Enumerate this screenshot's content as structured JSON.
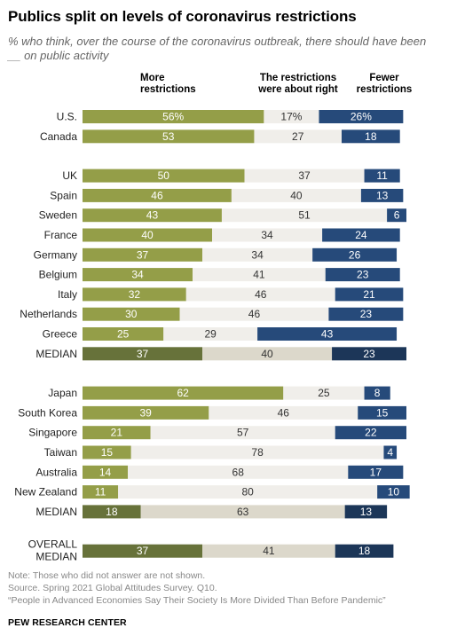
{
  "title": "Publics split on levels of coronavirus restrictions",
  "subtitle": "% who think, over the course of the coronavirus outbreak, there should have been __ on public activity",
  "chart_data": {
    "type": "bar",
    "stacked": true,
    "xlim": [
      0,
      100
    ],
    "series": [
      {
        "name": "More restrictions",
        "key": "more"
      },
      {
        "name": "The restrictions were about right",
        "key": "right"
      },
      {
        "name": "Fewer restrictions",
        "key": "fewer"
      }
    ],
    "colors": {
      "more": "#949e48",
      "right": "#f0eeea",
      "fewer": "#264a7a",
      "more_median": "#67723a",
      "right_median": "#dcd8cb",
      "fewer_median": "#1c3658"
    },
    "rows": [
      {
        "label": "U.S.",
        "more": 56,
        "right": 17,
        "fewer": 26,
        "labels": [
          "56%",
          "17%",
          "26%"
        ],
        "group": 0
      },
      {
        "label": "Canada",
        "more": 53,
        "right": 27,
        "fewer": 18,
        "labels": [
          "53",
          "27",
          "18"
        ],
        "group": 0
      },
      {
        "label": "UK",
        "more": 50,
        "right": 37,
        "fewer": 11,
        "labels": [
          "50",
          "37",
          "11"
        ],
        "group": 1
      },
      {
        "label": "Spain",
        "more": 46,
        "right": 40,
        "fewer": 13,
        "labels": [
          "46",
          "40",
          "13"
        ],
        "group": 1
      },
      {
        "label": "Sweden",
        "more": 43,
        "right": 51,
        "fewer": 6,
        "labels": [
          "43",
          "51",
          "6"
        ],
        "group": 1
      },
      {
        "label": "France",
        "more": 40,
        "right": 34,
        "fewer": 24,
        "labels": [
          "40",
          "34",
          "24"
        ],
        "group": 1
      },
      {
        "label": "Germany",
        "more": 37,
        "right": 34,
        "fewer": 26,
        "labels": [
          "37",
          "34",
          "26"
        ],
        "group": 1
      },
      {
        "label": "Belgium",
        "more": 34,
        "right": 41,
        "fewer": 23,
        "labels": [
          "34",
          "41",
          "23"
        ],
        "group": 1
      },
      {
        "label": "Italy",
        "more": 32,
        "right": 46,
        "fewer": 21,
        "labels": [
          "32",
          "46",
          "21"
        ],
        "group": 1
      },
      {
        "label": "Netherlands",
        "more": 30,
        "right": 46,
        "fewer": 23,
        "labels": [
          "30",
          "46",
          "23"
        ],
        "group": 1
      },
      {
        "label": "Greece",
        "more": 25,
        "right": 29,
        "fewer": 43,
        "labels": [
          "25",
          "29",
          "43"
        ],
        "group": 1
      },
      {
        "label": "MEDIAN",
        "more": 37,
        "right": 40,
        "fewer": 23,
        "labels": [
          "37",
          "40",
          "23"
        ],
        "group": 1,
        "median": true
      },
      {
        "label": "Japan",
        "more": 62,
        "right": 25,
        "fewer": 8,
        "labels": [
          "62",
          "25",
          "8"
        ],
        "group": 2
      },
      {
        "label": "South Korea",
        "more": 39,
        "right": 46,
        "fewer": 15,
        "labels": [
          "39",
          "46",
          "15"
        ],
        "group": 2
      },
      {
        "label": "Singapore",
        "more": 21,
        "right": 57,
        "fewer": 22,
        "labels": [
          "21",
          "57",
          "22"
        ],
        "group": 2
      },
      {
        "label": "Taiwan",
        "more": 15,
        "right": 78,
        "fewer": 4,
        "labels": [
          "15",
          "78",
          "4"
        ],
        "group": 2
      },
      {
        "label": "Australia",
        "more": 14,
        "right": 68,
        "fewer": 17,
        "labels": [
          "14",
          "68",
          "17"
        ],
        "group": 2
      },
      {
        "label": "New Zealand",
        "more": 11,
        "right": 80,
        "fewer": 10,
        "labels": [
          "11",
          "80",
          "10"
        ],
        "group": 2
      },
      {
        "label": "MEDIAN",
        "more": 18,
        "right": 63,
        "fewer": 13,
        "labels": [
          "18",
          "63",
          "13"
        ],
        "group": 2,
        "median": true
      },
      {
        "label": "OVERALL\nMEDIAN",
        "more": 37,
        "right": 41,
        "fewer": 18,
        "labels": [
          "37",
          "41",
          "18"
        ],
        "group": 3,
        "median": true
      }
    ]
  },
  "headers": {
    "more": "More\nrestrictions",
    "right": "The restrictions\nwere about right",
    "fewer": "Fewer\nrestrictions"
  },
  "notes": [
    "Note: Those who did not answer are not shown.",
    "Source. Spring 2021 Global Attitudes Survey. Q10.",
    "“People in Advanced Economies Say Their Society Is More Divided Than Before Pandemic”"
  ],
  "footer": "PEW RESEARCH CENTER"
}
